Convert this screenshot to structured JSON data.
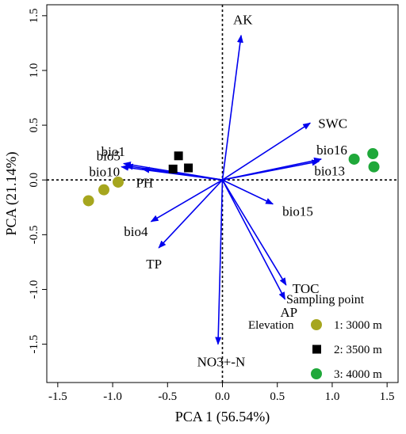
{
  "chart_data": {
    "type": "scatter",
    "title": "",
    "xlabel": "PCA 1 (56.54%)",
    "ylabel": "PCA (21.14%)",
    "xlim": [
      -1.6,
      1.6
    ],
    "ylim": [
      -1.85,
      1.6
    ],
    "xticks": [
      -1.5,
      -1.0,
      -0.5,
      0.0,
      0.5,
      1.0,
      1.5
    ],
    "xtick_labels": [
      "-1.5",
      "-1.0",
      "-0.5",
      "0.0",
      "0.5",
      "1.0",
      "1.5"
    ],
    "yticks": [
      -1.5,
      -1.0,
      -0.5,
      0.0,
      0.5,
      1.0,
      1.5
    ],
    "ytick_labels": [
      "-1.5",
      "-1.0",
      "-0.5",
      "0.0",
      "0.5",
      "1.0",
      "1.5"
    ],
    "reference_lines": {
      "x": 0,
      "y": 0,
      "style": "dotted"
    },
    "vectors": [
      {
        "name": "AK",
        "x": 0.17,
        "y": 1.32
      },
      {
        "name": "SWC",
        "x": 0.8,
        "y": 0.52
      },
      {
        "name": "bio16",
        "x": 0.9,
        "y": 0.19
      },
      {
        "name": "bio13",
        "x": 0.88,
        "y": 0.17
      },
      {
        "name": "bio15",
        "x": 0.46,
        "y": -0.22
      },
      {
        "name": "TOC",
        "x": 0.58,
        "y": -0.96
      },
      {
        "name": "AP",
        "x": 0.57,
        "y": -1.09
      },
      {
        "name": "NO3+-N",
        "x": -0.04,
        "y": -1.5
      },
      {
        "name": "TP",
        "x": -0.58,
        "y": -0.62
      },
      {
        "name": "bio4",
        "x": -0.65,
        "y": -0.38
      },
      {
        "name": "PH",
        "x": -0.73,
        "y": 0.1
      },
      {
        "name": "bio1",
        "x": -0.88,
        "y": 0.13
      },
      {
        "name": "bio5",
        "x": -0.9,
        "y": 0.15
      },
      {
        "name": "bio10",
        "x": -0.92,
        "y": 0.12
      }
    ],
    "series": [
      {
        "name": "1: 3000 m",
        "color": "#a6a61e",
        "marker": "circle",
        "points": [
          {
            "x": -1.22,
            "y": -0.19
          },
          {
            "x": -1.08,
            "y": -0.09
          },
          {
            "x": -0.95,
            "y": -0.02
          }
        ]
      },
      {
        "name": "2: 3500 m",
        "color": "#000000",
        "marker": "square",
        "points": [
          {
            "x": -0.4,
            "y": 0.22
          },
          {
            "x": -0.45,
            "y": 0.1
          },
          {
            "x": -0.31,
            "y": 0.11
          }
        ]
      },
      {
        "name": "3: 4000 m",
        "color": "#1fa83a",
        "marker": "circle",
        "points": [
          {
            "x": 1.2,
            "y": 0.19
          },
          {
            "x": 1.37,
            "y": 0.24
          },
          {
            "x": 1.38,
            "y": 0.12
          }
        ]
      }
    ],
    "vector_color": "#0000ee",
    "legend": {
      "title": "Sampling point",
      "subtitle": "Elevation",
      "position": "bottom-right"
    }
  }
}
